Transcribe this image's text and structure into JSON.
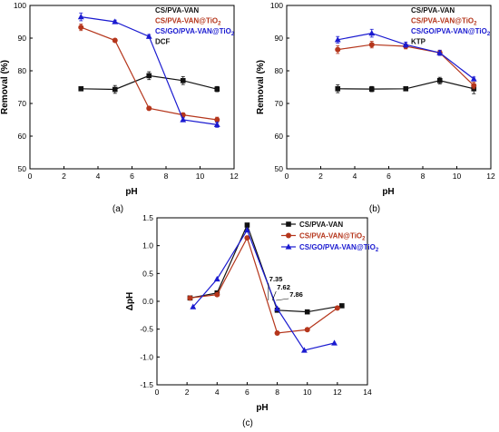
{
  "chart_data": [
    {
      "type": "line",
      "panel_label": "(a)",
      "xlabel": "pH",
      "ylabel": "Removal (%)",
      "xlim": [
        0,
        12
      ],
      "ylim": [
        50,
        100
      ],
      "xticks": [
        "0",
        "2",
        "4",
        "6",
        "8",
        "10",
        "12"
      ],
      "yticks": [
        "50",
        "60",
        "70",
        "80",
        "90",
        "100"
      ],
      "legend_placement": "top-right",
      "series": [
        {
          "name": "CS/PVA-VAN",
          "color": "#111111",
          "marker": "square",
          "x": [
            3,
            5,
            7,
            9,
            11
          ],
          "y": [
            74.5,
            74.3,
            78.5,
            77,
            74.4
          ],
          "err": [
            0.6,
            1.2,
            1.2,
            1.2,
            0.8
          ]
        },
        {
          "name": "CS/PVA-VAN@TiO",
          "name_sub": "2",
          "color": "#b5361c",
          "marker": "circle",
          "x": [
            3,
            5,
            7,
            9,
            11
          ],
          "y": [
            93.3,
            89.3,
            68.5,
            66.5,
            65
          ],
          "err": [
            1,
            0.5,
            0.5,
            0.6,
            0.8
          ]
        },
        {
          "name": "CS/GO/PVA-VAN@TiO",
          "name_sub": "2",
          "color": "#1a1ad0",
          "marker": "triangle",
          "x": [
            3,
            5,
            7,
            9,
            11
          ],
          "y": [
            96.5,
            95,
            90.5,
            65,
            63.5
          ],
          "err": [
            1.2,
            0.5,
            0.6,
            0.6,
            0.8
          ]
        },
        {
          "name": "DCF",
          "color": "#111111",
          "marker": "none",
          "x": [],
          "y": [],
          "err": []
        }
      ]
    },
    {
      "type": "line",
      "panel_label": "(b)",
      "xlabel": "pH",
      "ylabel": "Removal (%)",
      "xlim": [
        0,
        12
      ],
      "ylim": [
        50,
        100
      ],
      "xticks": [
        "0",
        "2",
        "4",
        "6",
        "8",
        "10",
        "12"
      ],
      "yticks": [
        "50",
        "60",
        "70",
        "80",
        "90",
        "100"
      ],
      "legend_placement": "top-right",
      "series": [
        {
          "name": "CS/PVA-VAN",
          "color": "#111111",
          "marker": "square",
          "x": [
            3,
            5,
            7,
            9,
            11
          ],
          "y": [
            74.5,
            74.4,
            74.5,
            77,
            74.5
          ],
          "err": [
            1.2,
            0.8,
            0.6,
            1,
            1.5
          ]
        },
        {
          "name": "CS/PVA-VAN@TiO",
          "name_sub": "2",
          "color": "#b5361c",
          "marker": "circle",
          "x": [
            3,
            5,
            7,
            9,
            11
          ],
          "y": [
            86.5,
            88,
            87.5,
            85.5,
            75.5
          ],
          "err": [
            1.2,
            1,
            0.8,
            0.8,
            1
          ]
        },
        {
          "name": "CS/GO/PVA-VAN@TiO",
          "name_sub": "2",
          "color": "#1a1ad0",
          "marker": "triangle",
          "x": [
            3,
            5,
            7,
            9,
            11
          ],
          "y": [
            89.5,
            91.5,
            88,
            85.5,
            77.5
          ],
          "err": [
            1,
            1.2,
            0.8,
            0.8,
            0.6
          ]
        },
        {
          "name": "KTP",
          "color": "#111111",
          "marker": "none",
          "x": [],
          "y": [],
          "err": []
        }
      ]
    },
    {
      "type": "line",
      "panel_label": "(c)",
      "xlabel": "pH",
      "ylabel": "ΔpH",
      "xlim": [
        0,
        14
      ],
      "ylim": [
        -1.5,
        1.5
      ],
      "xticks": [
        "0",
        "2",
        "4",
        "6",
        "8",
        "10",
        "12",
        "14"
      ],
      "yticks": [
        "-1.5",
        "-1.0",
        "-0.5",
        "0.0",
        "0.5",
        "1.0",
        "1.5"
      ],
      "legend_placement": "top-right",
      "annotations": [
        {
          "text": "7.35",
          "x": 7.35,
          "y": 0
        },
        {
          "text": "7.62",
          "x": 7.62,
          "y": 0
        },
        {
          "text": "7.86",
          "x": 7.86,
          "y": 0
        }
      ],
      "series": [
        {
          "name": "CS/PVA-VAN",
          "color": "#111111",
          "marker": "square",
          "x": [
            2.2,
            4,
            6,
            8,
            10,
            12.3
          ],
          "y": [
            0.06,
            0.15,
            1.37,
            -0.16,
            -0.19,
            -0.08
          ]
        },
        {
          "name": "CS/PVA-VAN@TiO",
          "name_sub": "2",
          "color": "#b5361c",
          "marker": "circle",
          "x": [
            2.2,
            4,
            6,
            8,
            10,
            12
          ],
          "y": [
            0.06,
            0.12,
            1.14,
            -0.57,
            -0.51,
            -0.12
          ]
        },
        {
          "name": "CS/GO/PVA-VAN@TiO",
          "name_sub": "2",
          "color": "#1a1ad0",
          "marker": "triangle",
          "x": [
            2.4,
            4,
            6,
            8,
            9.8,
            11.8
          ],
          "y": [
            -0.1,
            0.4,
            1.28,
            -0.13,
            -0.88,
            -0.75
          ]
        }
      ]
    }
  ]
}
